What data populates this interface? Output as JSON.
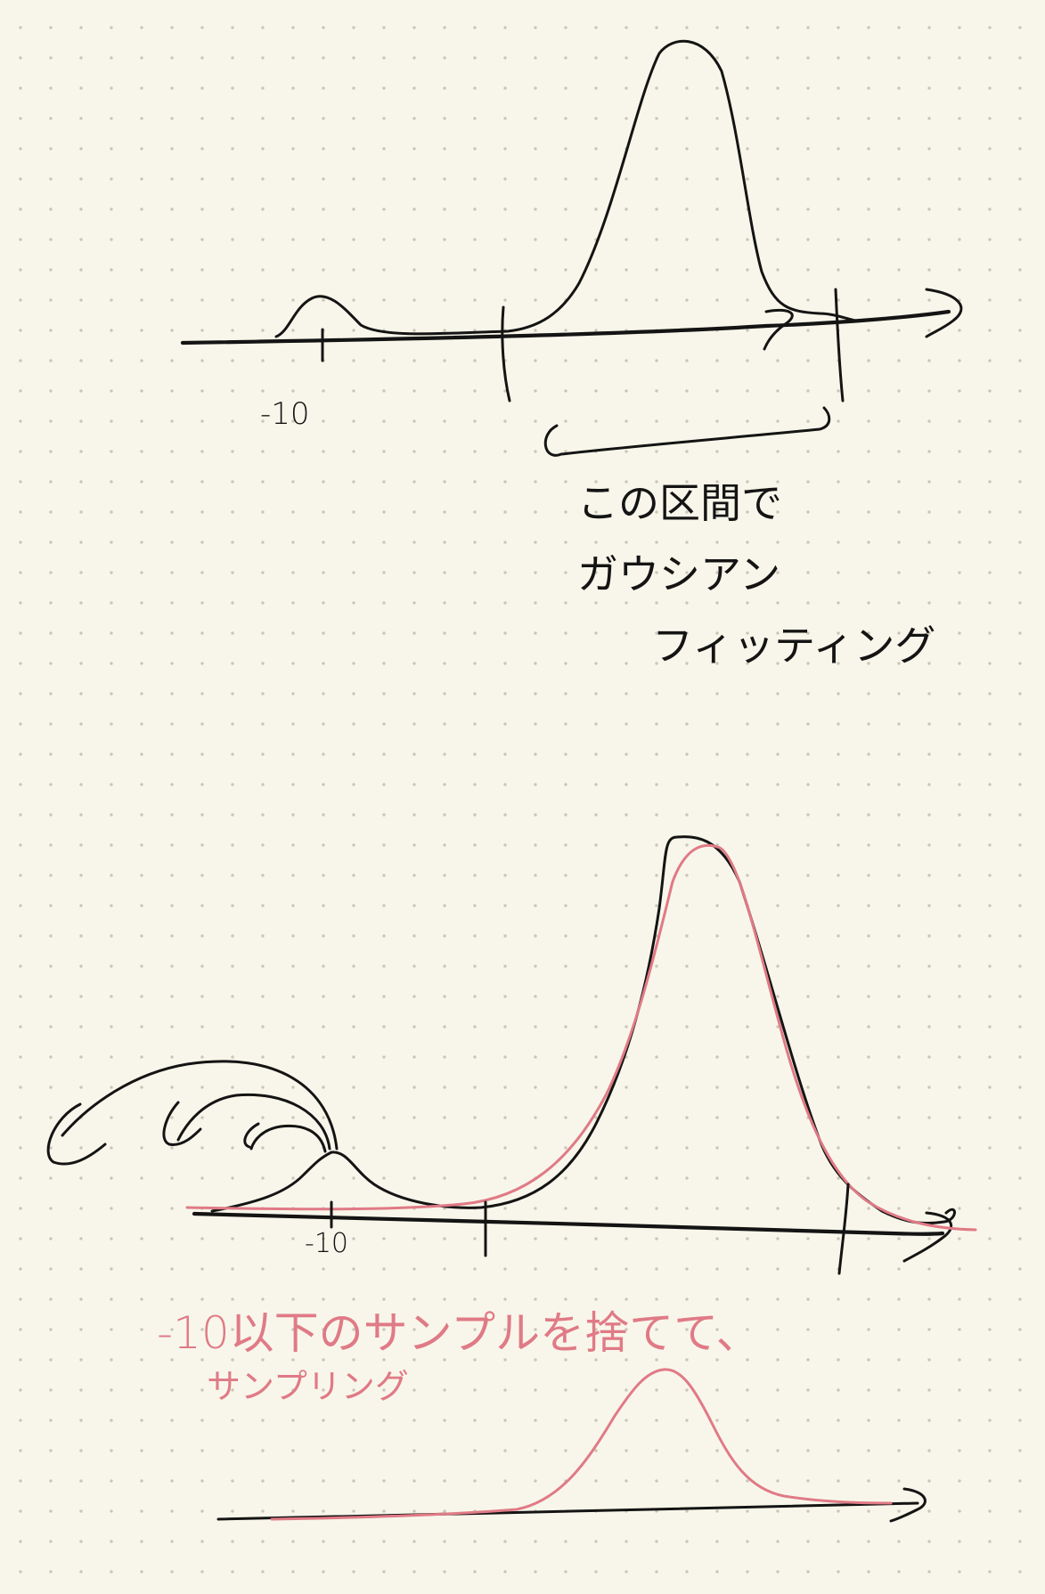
{
  "top_sketch": {
    "tick_label": "-10",
    "note_lines": [
      "この区間で",
      "ガウシアン",
      "フィッティング"
    ]
  },
  "middle_sketch": {
    "tick_label": "-10",
    "caption_line1": "-10以下のサンプルを捨てて、",
    "caption_line2": "サンプリング"
  },
  "colors": {
    "ink": "#141414",
    "pink": "#e07a86",
    "paper": "#f8f6ea",
    "dots": "#c9c6b8"
  }
}
